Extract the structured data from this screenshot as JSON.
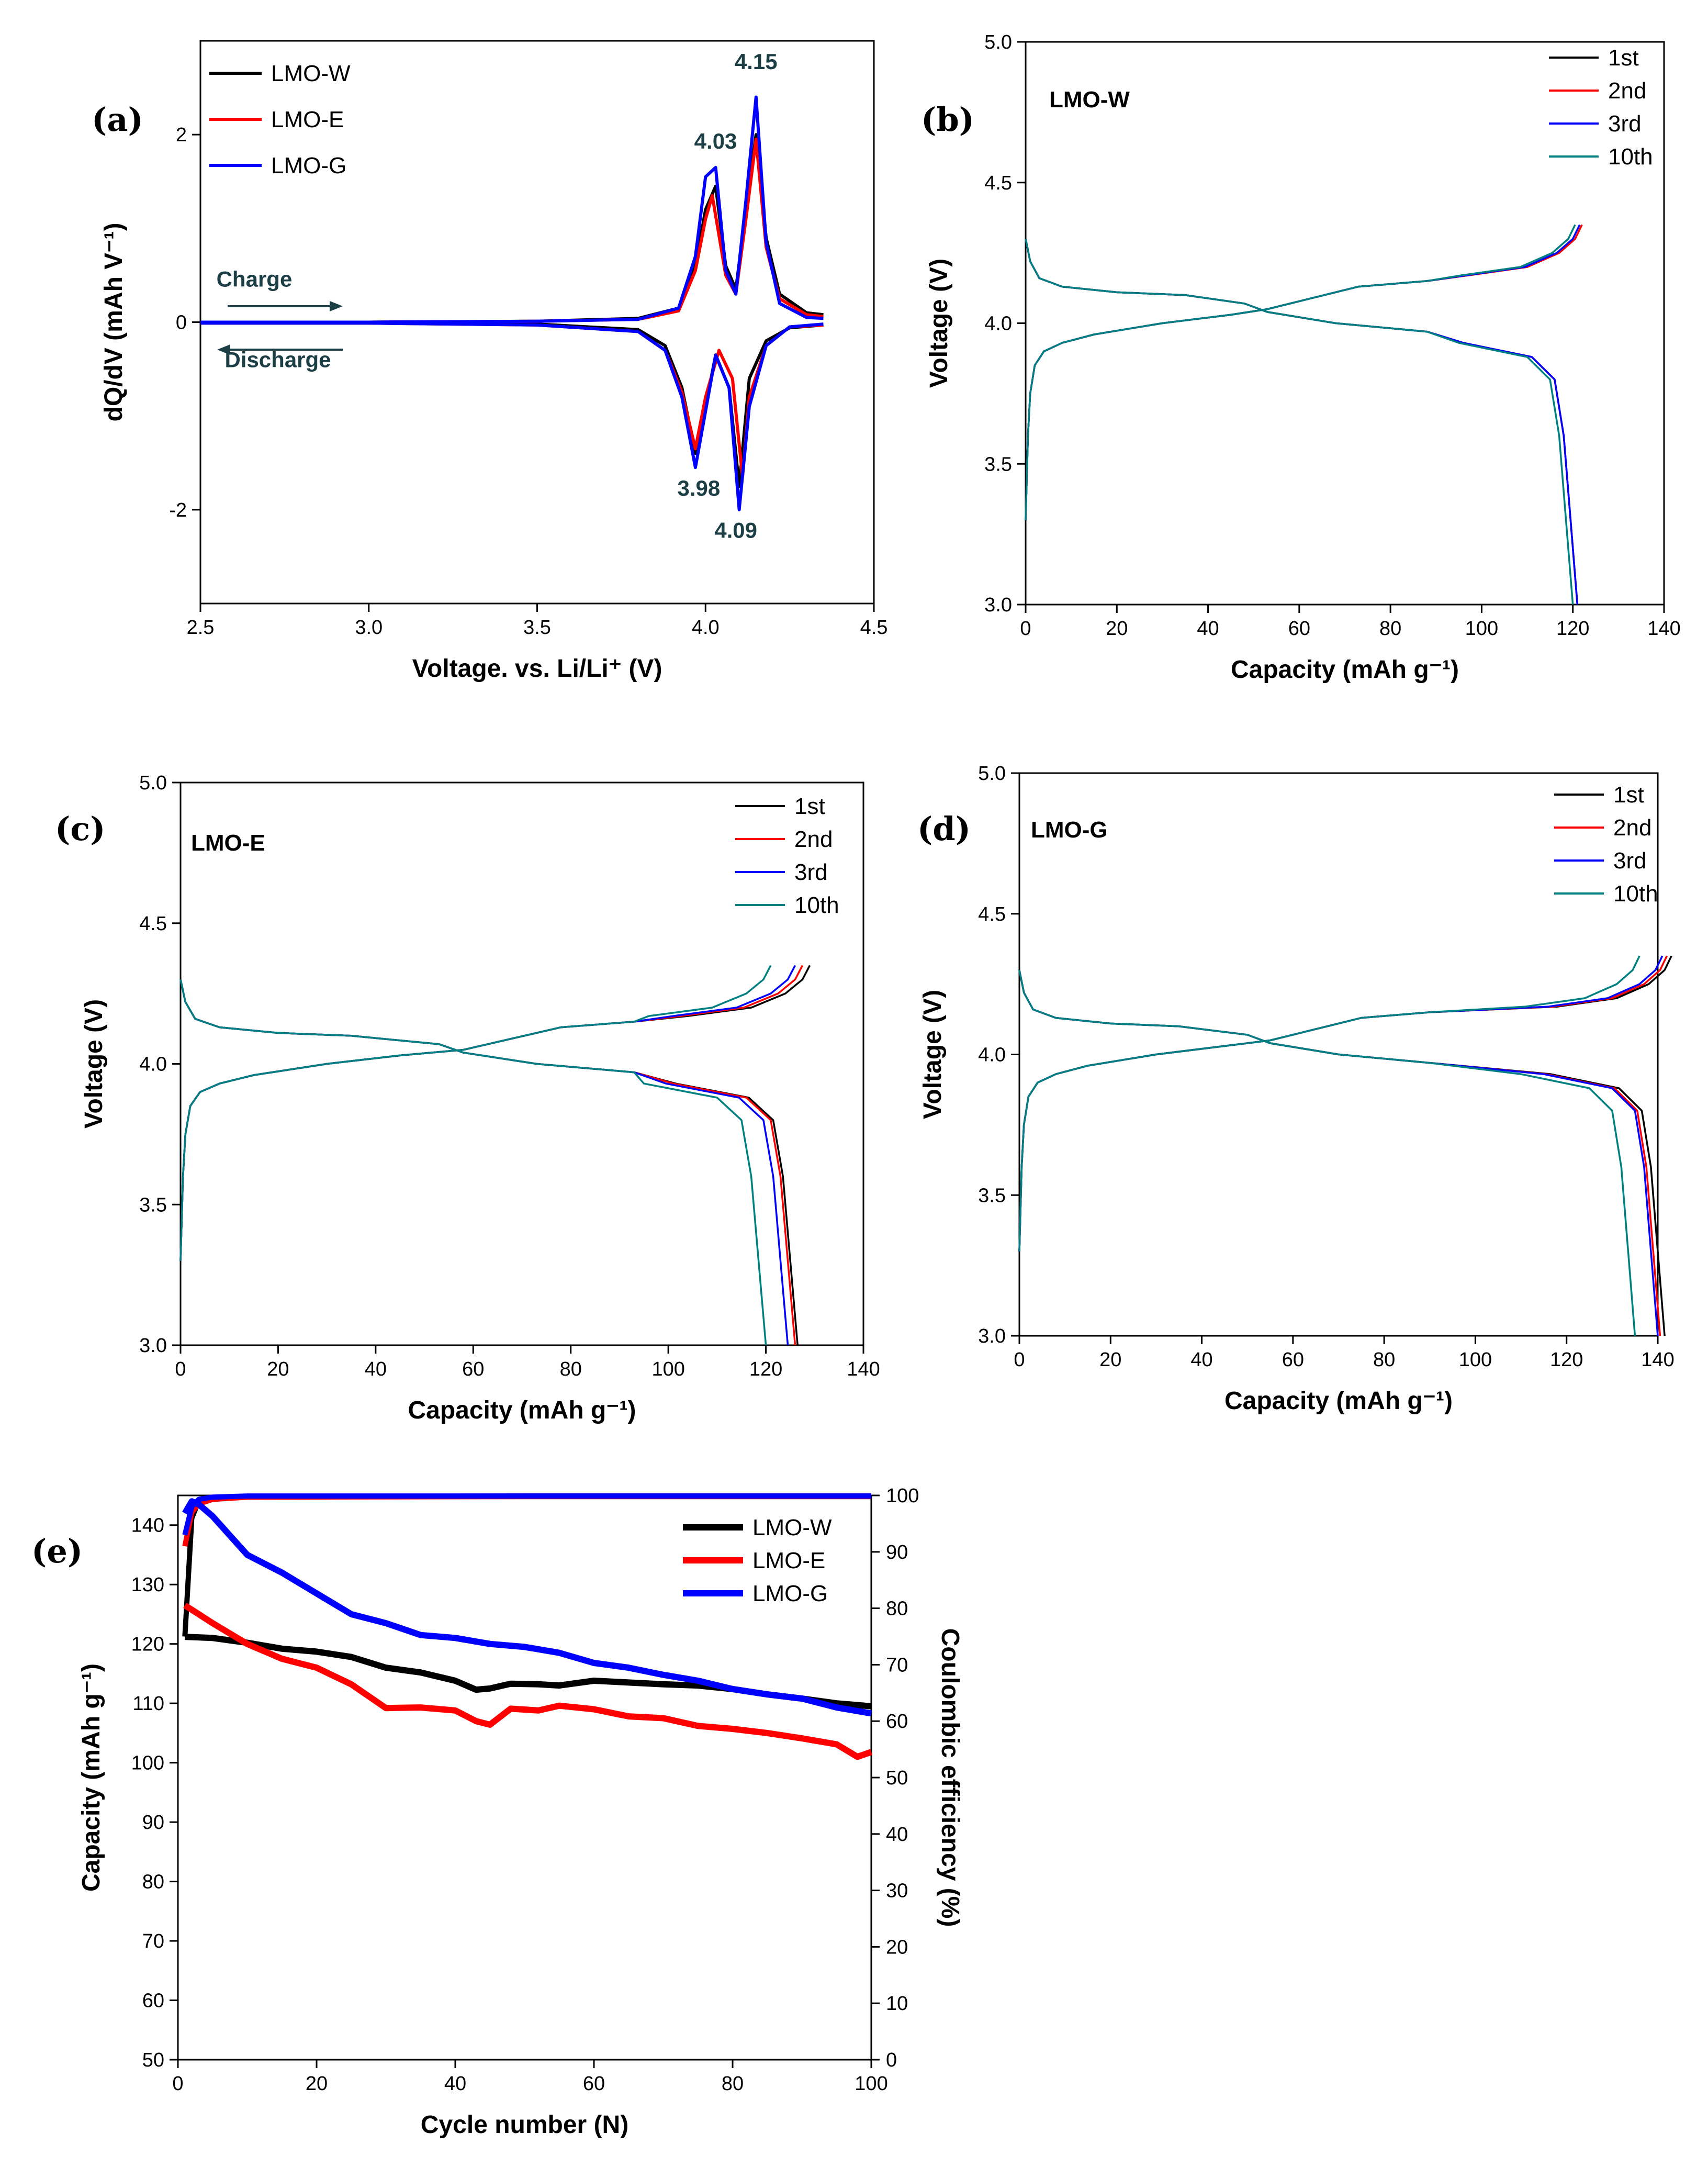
{
  "chart_data": [
    {
      "type": "line",
      "panel": "(a)",
      "xlabel": "Voltage. vs. Li/Li⁺ (V)",
      "ylabel": "dQ/dV (mAh V⁻¹)",
      "xlim": [
        2.5,
        4.5
      ],
      "ylim": [
        -3,
        3
      ],
      "xticks": [
        "2.5",
        "3.0",
        "3.5",
        "4.0",
        "4.5"
      ],
      "yticks": [
        "-2",
        "0",
        "2"
      ],
      "legend_position": "top-left",
      "annotations": [
        {
          "text": "4.15",
          "x": 4.15,
          "y": 2.7
        },
        {
          "text": "4.03",
          "x": 4.03,
          "y": 1.85
        },
        {
          "text": "3.98",
          "x": 3.98,
          "y": -1.85
        },
        {
          "text": "4.09",
          "x": 4.09,
          "y": -2.3
        },
        {
          "text": "Charge",
          "x": 2.66,
          "y": 0.38
        },
        {
          "text": "Discharge",
          "x": 2.73,
          "y": -0.48
        }
      ],
      "series": [
        {
          "name": "LMO-W",
          "color": "#000000",
          "charge": [
            [
              2.5,
              0
            ],
            [
              3.0,
              0
            ],
            [
              3.5,
              0.01
            ],
            [
              3.8,
              0.04
            ],
            [
              3.92,
              0.15
            ],
            [
              3.97,
              0.6
            ],
            [
              4.0,
              1.2
            ],
            [
              4.03,
              1.45
            ],
            [
              4.06,
              0.6
            ],
            [
              4.09,
              0.35
            ],
            [
              4.12,
              1.2
            ],
            [
              4.15,
              2.0
            ],
            [
              4.18,
              0.9
            ],
            [
              4.22,
              0.3
            ],
            [
              4.3,
              0.1
            ],
            [
              4.35,
              0.08
            ]
          ],
          "discharge": [
            [
              4.35,
              -0.03
            ],
            [
              4.25,
              -0.06
            ],
            [
              4.18,
              -0.2
            ],
            [
              4.13,
              -0.6
            ],
            [
              4.1,
              -1.75
            ],
            [
              4.07,
              -0.7
            ],
            [
              4.03,
              -0.35
            ],
            [
              4.0,
              -0.9
            ],
            [
              3.97,
              -1.4
            ],
            [
              3.93,
              -0.7
            ],
            [
              3.88,
              -0.25
            ],
            [
              3.8,
              -0.08
            ],
            [
              3.5,
              -0.02
            ],
            [
              3.0,
              -0.01
            ],
            [
              2.5,
              -0.01
            ]
          ]
        },
        {
          "name": "LMO-E",
          "color": "#ff0000",
          "charge": [
            [
              2.5,
              0
            ],
            [
              3.0,
              0
            ],
            [
              3.5,
              0.01
            ],
            [
              3.8,
              0.03
            ],
            [
              3.92,
              0.12
            ],
            [
              3.97,
              0.55
            ],
            [
              4.0,
              1.1
            ],
            [
              4.02,
              1.35
            ],
            [
              4.06,
              0.5
            ],
            [
              4.09,
              0.3
            ],
            [
              4.12,
              1.1
            ],
            [
              4.15,
              1.95
            ],
            [
              4.18,
              0.8
            ],
            [
              4.22,
              0.25
            ],
            [
              4.3,
              0.08
            ],
            [
              4.35,
              0.06
            ]
          ],
          "discharge": [
            [
              4.35,
              -0.03
            ],
            [
              4.25,
              -0.05
            ],
            [
              4.18,
              -0.25
            ],
            [
              4.13,
              -0.8
            ],
            [
              4.11,
              -1.65
            ],
            [
              4.08,
              -0.6
            ],
            [
              4.04,
              -0.3
            ],
            [
              4.0,
              -0.8
            ],
            [
              3.97,
              -1.35
            ],
            [
              3.93,
              -0.75
            ],
            [
              3.88,
              -0.3
            ],
            [
              3.8,
              -0.1
            ],
            [
              3.5,
              -0.03
            ],
            [
              3.0,
              -0.01
            ],
            [
              2.5,
              -0.01
            ]
          ]
        },
        {
          "name": "LMO-G",
          "color": "#0000ff",
          "charge": [
            [
              2.5,
              0
            ],
            [
              3.0,
              0
            ],
            [
              3.5,
              0.01
            ],
            [
              3.8,
              0.03
            ],
            [
              3.92,
              0.15
            ],
            [
              3.97,
              0.7
            ],
            [
              4.0,
              1.55
            ],
            [
              4.03,
              1.65
            ],
            [
              4.06,
              0.55
            ],
            [
              4.09,
              0.3
            ],
            [
              4.12,
              1.3
            ],
            [
              4.15,
              2.4
            ],
            [
              4.18,
              0.85
            ],
            [
              4.22,
              0.2
            ],
            [
              4.3,
              0.05
            ],
            [
              4.35,
              0.04
            ]
          ],
          "discharge": [
            [
              4.35,
              -0.02
            ],
            [
              4.25,
              -0.05
            ],
            [
              4.18,
              -0.25
            ],
            [
              4.13,
              -0.9
            ],
            [
              4.1,
              -2.0
            ],
            [
              4.07,
              -0.7
            ],
            [
              4.03,
              -0.35
            ],
            [
              4.0,
              -0.95
            ],
            [
              3.97,
              -1.55
            ],
            [
              3.93,
              -0.8
            ],
            [
              3.88,
              -0.3
            ],
            [
              3.8,
              -0.1
            ],
            [
              3.5,
              -0.03
            ],
            [
              3.0,
              -0.01
            ],
            [
              2.5,
              -0.01
            ]
          ]
        }
      ]
    },
    {
      "type": "line",
      "panel": "(b)",
      "title": "LMO-W",
      "xlabel": "Capacity (mAh g⁻¹)",
      "ylabel": "Voltage (V)",
      "xlim": [
        0,
        140
      ],
      "ylim": [
        3.0,
        5.0
      ],
      "xticks": [
        "0",
        "20",
        "40",
        "60",
        "80",
        "100",
        "120",
        "140"
      ],
      "yticks": [
        "3.0",
        "3.5",
        "4.0",
        "4.5",
        "5.0"
      ],
      "legend_position": "top-right",
      "series": [
        {
          "name": "1st",
          "color": "#000000",
          "charge_end": 122,
          "discharge_end": 121
        },
        {
          "name": "2nd",
          "color": "#ff0000",
          "charge_end": 122,
          "discharge_end": 121
        },
        {
          "name": "3rd",
          "color": "#0000ff",
          "charge_end": 121.5,
          "discharge_end": 121
        },
        {
          "name": "10th",
          "color": "#008080",
          "charge_end": 120.5,
          "discharge_end": 120
        }
      ]
    },
    {
      "type": "line",
      "panel": "(c)",
      "title": "LMO-E",
      "xlabel": "Capacity (mAh g⁻¹)",
      "ylabel": "Voltage (V)",
      "xlim": [
        0,
        140
      ],
      "ylim": [
        3.0,
        5.0
      ],
      "xticks": [
        "0",
        "20",
        "40",
        "60",
        "80",
        "100",
        "120",
        "140"
      ],
      "yticks": [
        "3.0",
        "3.5",
        "4.0",
        "4.5",
        "5.0"
      ],
      "legend_position": "top-right",
      "series": [
        {
          "name": "1st",
          "color": "#000000",
          "charge_end": 129,
          "discharge_end": 126.5
        },
        {
          "name": "2nd",
          "color": "#ff0000",
          "charge_end": 127.5,
          "discharge_end": 126
        },
        {
          "name": "3rd",
          "color": "#0000ff",
          "charge_end": 126,
          "discharge_end": 124.5
        },
        {
          "name": "10th",
          "color": "#008080",
          "charge_end": 121,
          "discharge_end": 120
        }
      ]
    },
    {
      "type": "line",
      "panel": "(d)",
      "title": "LMO-G",
      "xlabel": "Capacity (mAh g⁻¹)",
      "ylabel": "Voltage (V)",
      "xlim": [
        0,
        140
      ],
      "ylim": [
        3.0,
        5.0
      ],
      "xticks": [
        "0",
        "20",
        "40",
        "60",
        "80",
        "100",
        "120",
        "140"
      ],
      "yticks": [
        "3.0",
        "3.5",
        "4.0",
        "4.5",
        "5.0"
      ],
      "legend_position": "top-right",
      "series": [
        {
          "name": "1st",
          "color": "#000000",
          "charge_end": 143,
          "discharge_end": 141.5
        },
        {
          "name": "2nd",
          "color": "#ff0000",
          "charge_end": 142,
          "discharge_end": 140.5
        },
        {
          "name": "3rd",
          "color": "#0000ff",
          "charge_end": 141,
          "discharge_end": 140
        },
        {
          "name": "10th",
          "color": "#008080",
          "charge_end": 136,
          "discharge_end": 135
        }
      ]
    },
    {
      "type": "line",
      "panel": "(e)",
      "xlabel": "Cycle number (N)",
      "ylabel": "Capacity (mAh g⁻¹)",
      "y2label": "Coulombic efficiency (%)",
      "xlim": [
        0,
        100
      ],
      "ylim": [
        50,
        145
      ],
      "y2lim": [
        0,
        100
      ],
      "xticks": [
        "0",
        "20",
        "40",
        "60",
        "80",
        "100"
      ],
      "yticks": [
        "50",
        "60",
        "70",
        "80",
        "90",
        "100",
        "110",
        "120",
        "130",
        "140"
      ],
      "y2ticks": [
        "0",
        "10",
        "20",
        "30",
        "40",
        "50",
        "60",
        "70",
        "80",
        "90",
        "100"
      ],
      "legend_position": "top-right",
      "series": [
        {
          "name": "LMO-W",
          "color": "#000000",
          "capacity": [
            [
              1,
              121.2
            ],
            [
              5,
              121
            ],
            [
              10,
              120.2
            ],
            [
              15,
              119.2
            ],
            [
              20,
              118.7
            ],
            [
              25,
              117.8
            ],
            [
              30,
              116
            ],
            [
              35,
              115.2
            ],
            [
              40,
              113.8
            ],
            [
              43,
              112.3
            ],
            [
              45,
              112.5
            ],
            [
              48,
              113.3
            ],
            [
              52,
              113.2
            ],
            [
              55,
              113.0
            ],
            [
              60,
              113.8
            ],
            [
              65,
              113.5
            ],
            [
              70,
              113.2
            ],
            [
              75,
              113.0
            ],
            [
              80,
              112.4
            ],
            [
              85,
              111.5
            ],
            [
              90,
              110.8
            ],
            [
              95,
              110
            ],
            [
              100,
              109.5
            ]
          ],
          "efficiency": [
            [
              1,
              75
            ],
            [
              2,
              96
            ],
            [
              3,
              99
            ],
            [
              5,
              99.6
            ],
            [
              10,
              99.8
            ],
            [
              50,
              99.9
            ],
            [
              100,
              99.9
            ]
          ]
        },
        {
          "name": "LMO-E",
          "color": "#ff0000",
          "capacity": [
            [
              1,
              126.5
            ],
            [
              3,
              125
            ],
            [
              5,
              123.5
            ],
            [
              10,
              120
            ],
            [
              15,
              117.5
            ],
            [
              20,
              116
            ],
            [
              25,
              113.2
            ],
            [
              30,
              109.2
            ],
            [
              35,
              109.3
            ],
            [
              40,
              108.8
            ],
            [
              43,
              107
            ],
            [
              45,
              106.4
            ],
            [
              48,
              109.1
            ],
            [
              52,
              108.8
            ],
            [
              55,
              109.6
            ],
            [
              60,
              109
            ],
            [
              65,
              107.8
            ],
            [
              70,
              107.5
            ],
            [
              75,
              106.2
            ],
            [
              80,
              105.7
            ],
            [
              85,
              105
            ],
            [
              90,
              104.1
            ],
            [
              95,
              103.1
            ],
            [
              98,
              101
            ],
            [
              100,
              101.8
            ]
          ],
          "efficiency": [
            [
              1,
              91
            ],
            [
              2,
              97
            ],
            [
              3,
              98.5
            ],
            [
              5,
              99.3
            ],
            [
              10,
              99.7
            ],
            [
              50,
              99.8
            ],
            [
              100,
              99.8
            ]
          ]
        },
        {
          "name": "LMO-G",
          "color": "#0000ff",
          "capacity": [
            [
              1,
              142
            ],
            [
              2,
              144
            ],
            [
              3,
              143.5
            ],
            [
              5,
              141.5
            ],
            [
              10,
              135
            ],
            [
              15,
              132
            ],
            [
              20,
              128.5
            ],
            [
              25,
              125
            ],
            [
              30,
              123.5
            ],
            [
              35,
              121.5
            ],
            [
              40,
              121
            ],
            [
              45,
              120
            ],
            [
              50,
              119.5
            ],
            [
              55,
              118.5
            ],
            [
              60,
              116.8
            ],
            [
              65,
              116
            ],
            [
              70,
              114.8
            ],
            [
              75,
              113.8
            ],
            [
              80,
              112.4
            ],
            [
              85,
              111.5
            ],
            [
              90,
              110.8
            ],
            [
              95,
              109.3
            ],
            [
              100,
              108.3
            ]
          ],
          "efficiency": [
            [
              1,
              93
            ],
            [
              2,
              98
            ],
            [
              3,
              99.3
            ],
            [
              5,
              99.7
            ],
            [
              10,
              99.9
            ],
            [
              50,
              99.9
            ],
            [
              100,
              99.9
            ]
          ]
        }
      ]
    }
  ]
}
